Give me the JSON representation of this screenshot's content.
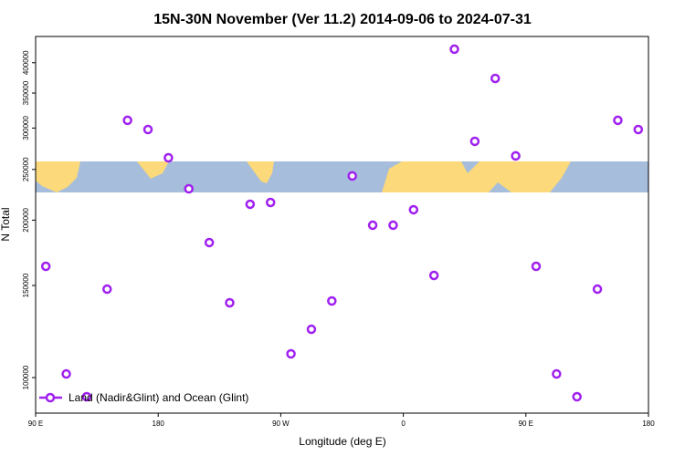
{
  "chart_data": {
    "type": "scatter",
    "title": "15N-30N November (Ver 11.2)   2014-09-06 to 2024-07-31",
    "x_label": "Longitude (deg E)",
    "y_label": "N Total",
    "series": [
      {
        "name": "Land (Nadir&Glint) and Ocean (Glint)",
        "color": "#a020f0",
        "x": [
          97.5,
          112.5,
          127.5,
          142.5,
          157.5,
          172.5,
          187.5,
          202.5,
          217.5,
          232.5,
          247.5,
          262.5,
          277.5,
          292.5,
          307.5,
          322.5,
          337.5,
          352.5,
          367.5,
          382.5,
          397.5,
          412.5,
          427.5,
          442.5,
          457.5,
          472.5,
          487.5,
          502.5,
          517.5,
          532.5
        ],
        "values": [
          163200,
          101600,
          91900,
          147600,
          310400,
          298100,
          263200,
          229600,
          181200,
          139000,
          214500,
          216200,
          111000,
          123700,
          140100,
          243000,
          195600,
          195600,
          209400,
          156800,
          424600,
          283000,
          373300,
          265400,
          163200,
          101600,
          91900,
          147600,
          310400,
          298100
        ]
      }
    ],
    "xlim": [
      90,
      540
    ],
    "xticks": [
      {
        "value": 90,
        "label": "90 E"
      },
      180,
      {
        "value": 270,
        "label": "90 W"
      },
      {
        "value": 360,
        "label": "0"
      },
      {
        "value": 450,
        "label": "90 E"
      },
      {
        "value": 540,
        "label": "180"
      }
    ],
    "ylim": [
      85500,
      449000
    ],
    "yticks": [
      100000,
      150000,
      200000,
      250000,
      300000,
      350000,
      400000
    ],
    "y_log": true,
    "legend": "bottom-left"
  }
}
